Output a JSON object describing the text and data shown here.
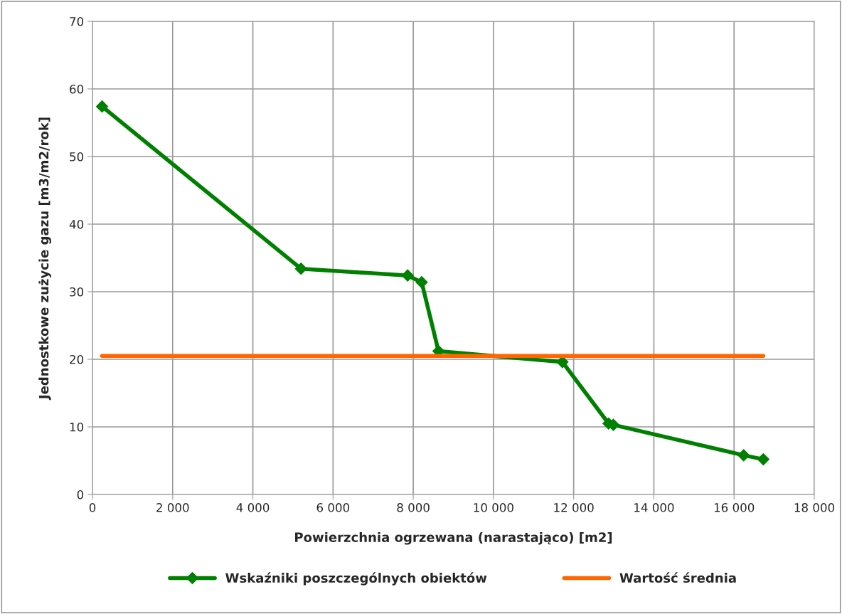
{
  "chart_data": {
    "type": "line",
    "xlabel": "Powierzchnia ogrzewana (narastająco) [m2]",
    "ylabel": "Jednostkowe zużycie gazu [m3/m2/rok]",
    "series": [
      {
        "name": "Wskaźniki poszczególnych obiektów",
        "color": "#008000",
        "marker": "diamond",
        "x": [
          240,
          5200,
          7860,
          8210,
          8630,
          11720,
          12870,
          12990,
          16240,
          16730
        ],
        "values": [
          57.4,
          33.4,
          32.4,
          31.4,
          21.2,
          19.6,
          10.5,
          10.3,
          5.8,
          5.2
        ]
      },
      {
        "name": "Wartość średnia",
        "color": "#ff6600",
        "marker": "none",
        "x": [
          240,
          16730
        ],
        "values": [
          20.5,
          20.5
        ]
      }
    ],
    "xlim": [
      0,
      18000
    ],
    "ylim": [
      0,
      70
    ],
    "xticks": [
      0,
      {
        "value": 2000,
        "label": "2 000"
      },
      {
        "value": 4000,
        "label": "4 000"
      },
      {
        "value": 6000,
        "label": "6 000"
      },
      {
        "value": 8000,
        "label": "8 000"
      },
      {
        "value": 10000,
        "label": "10 000"
      },
      {
        "value": 12000,
        "label": "12 000"
      },
      {
        "value": 14000,
        "label": "14 000"
      },
      {
        "value": 16000,
        "label": "16 000"
      },
      {
        "value": 18000,
        "label": "18 000"
      }
    ],
    "yticks": [
      0,
      10,
      20,
      30,
      40,
      50,
      60,
      70
    ],
    "grid": true,
    "legend": "bottom"
  }
}
